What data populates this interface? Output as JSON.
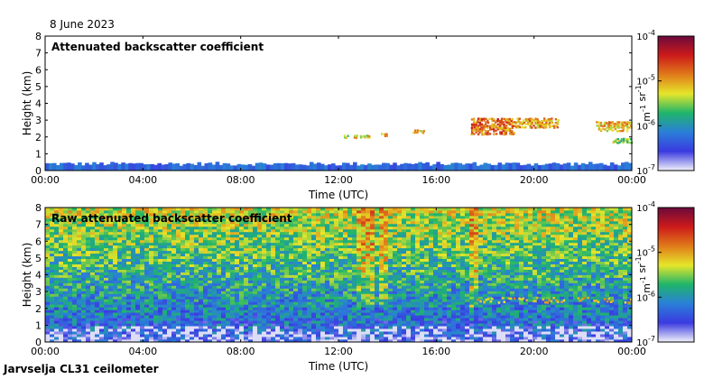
{
  "header": {
    "date": "8 June 2023"
  },
  "footer": {
    "instrument": "Jarvselja CL31 ceilometer"
  },
  "colors": {
    "colormap": [
      "#f2f2fa",
      "#3a3ae0",
      "#2a7fd8",
      "#1fb56a",
      "#e6e62a",
      "#e07a1a",
      "#cc1a1a",
      "#6b0a3c"
    ]
  },
  "chart_data": [
    {
      "type": "heatmap",
      "title": "Attenuated backscatter coefficient",
      "xlabel": "Time (UTC)",
      "ylabel": "Height (km)",
      "xticks": [
        "00:00",
        "04:00",
        "08:00",
        "12:00",
        "16:00",
        "20:00",
        "00:00"
      ],
      "yticks": [
        "0",
        "1",
        "2",
        "3",
        "4",
        "5",
        "6",
        "7",
        "8"
      ],
      "xlim_hours": [
        0,
        24
      ],
      "ylim_km": [
        0,
        8
      ],
      "colorbar": {
        "label": "m-1 sr-1",
        "ticks": [
          "10-7",
          "10-6",
          "10-5",
          "10-4"
        ],
        "range_log10": [
          -7,
          -4
        ]
      },
      "features": [
        {
          "kind": "boundary layer",
          "start_h": 0,
          "end_h": 24,
          "top_km": 0.4,
          "log10_value": -6.3
        },
        {
          "kind": "cloud layer",
          "start_h": 12.2,
          "end_h": 12.4,
          "bottom_km": 2.0,
          "top_km": 2.2,
          "log10_value": -5.3
        },
        {
          "kind": "cloud layer",
          "start_h": 12.6,
          "end_h": 13.3,
          "bottom_km": 2.0,
          "top_km": 2.2,
          "log10_value": -5.2
        },
        {
          "kind": "cloud layer",
          "start_h": 13.7,
          "end_h": 14.0,
          "bottom_km": 2.1,
          "top_km": 2.3,
          "log10_value": -5.1
        },
        {
          "kind": "cloud layer",
          "start_h": 15.0,
          "end_h": 15.5,
          "bottom_km": 2.3,
          "top_km": 2.5,
          "log10_value": -5.2
        },
        {
          "kind": "cloud layer",
          "start_h": 17.4,
          "end_h": 19.2,
          "bottom_km": 2.2,
          "top_km": 3.2,
          "log10_value": -4.8
        },
        {
          "kind": "cloud layer",
          "start_h": 19.2,
          "end_h": 21.0,
          "bottom_km": 2.6,
          "top_km": 3.2,
          "log10_value": -5.0
        },
        {
          "kind": "cloud layer",
          "start_h": 22.5,
          "end_h": 24.0,
          "bottom_km": 2.4,
          "top_km": 3.0,
          "log10_value": -5.1
        },
        {
          "kind": "cloud layer",
          "start_h": 23.2,
          "end_h": 24.0,
          "bottom_km": 1.7,
          "top_km": 2.0,
          "log10_value": -5.5
        }
      ]
    },
    {
      "type": "heatmap",
      "title": "Raw attenuated backscatter coefficient",
      "xlabel": "Time (UTC)",
      "ylabel": "Height (km)",
      "xticks": [
        "00:00",
        "04:00",
        "08:00",
        "12:00",
        "16:00",
        "20:00",
        "00:00"
      ],
      "yticks": [
        "0",
        "1",
        "2",
        "3",
        "4",
        "5",
        "6",
        "7",
        "8"
      ],
      "xlim_hours": [
        0,
        24
      ],
      "ylim_km": [
        0,
        8
      ],
      "colorbar": {
        "label": "m-1 sr-1",
        "ticks": [
          "10-7",
          "10-6",
          "10-5",
          "10-4"
        ],
        "range_log10": [
          -7,
          -4
        ]
      },
      "background": {
        "log10_near_ground": -6.6,
        "log10_at_top": -5.3
      },
      "features": [
        {
          "kind": "noise column",
          "start_h": 12.7,
          "end_h": 13.5,
          "log10_value": -4.9
        },
        {
          "kind": "noise column",
          "start_h": 13.7,
          "end_h": 14.1,
          "log10_value": -5.2
        },
        {
          "kind": "noise column",
          "start_h": 17.4,
          "end_h": 17.8,
          "log10_value": -4.9
        },
        {
          "kind": "cloud layer",
          "start_h": 17.4,
          "end_h": 24.0,
          "bottom_km": 2.4,
          "top_km": 3.0,
          "log10_value": -5.1
        }
      ]
    }
  ]
}
